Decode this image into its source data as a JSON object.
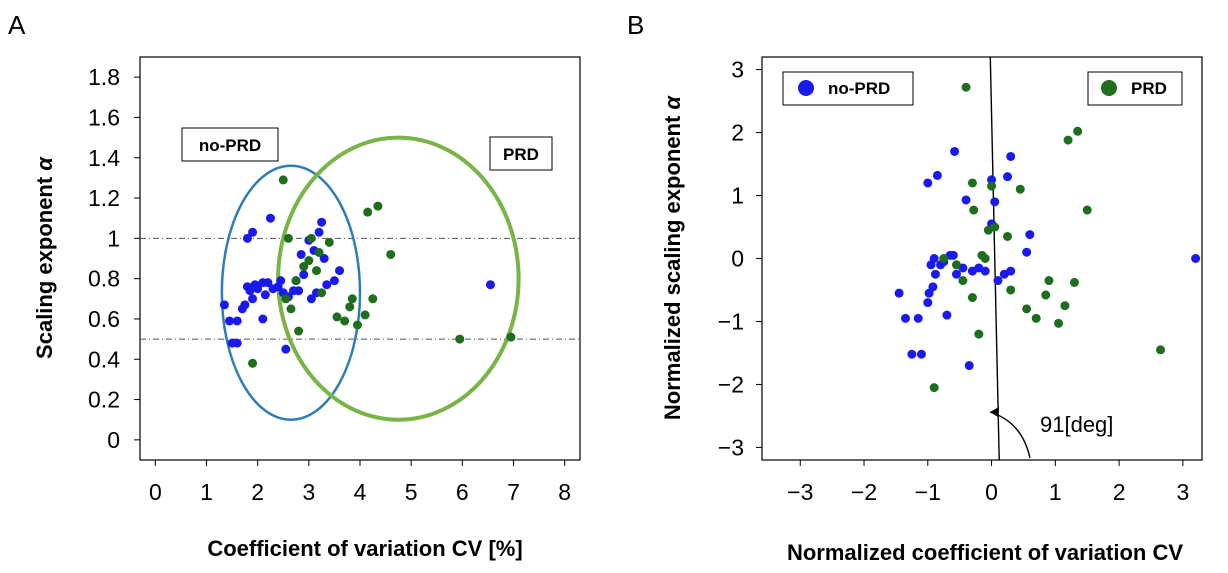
{
  "colors": {
    "no_prd": "#1a1aee",
    "prd": "#1e6e1e",
    "ellipse_no_prd": "#2e7db8",
    "ellipse_prd": "#78b446",
    "refline": "#555555"
  },
  "chart_data": [
    {
      "type": "scatter",
      "panel_label": "A",
      "xlabel": "Coefficient of variation CV [%]",
      "ylabel_main": "Scaling exponent ",
      "ylabel_symbol": "α",
      "xlim": [
        -0.3,
        8.3
      ],
      "ylim": [
        -0.1,
        1.9
      ],
      "xticks": [
        "0",
        "1",
        "2",
        "3",
        "4",
        "5",
        "6",
        "7",
        "8"
      ],
      "yticks": [
        "0",
        "0.2",
        "0.4",
        "0.6",
        "0.8",
        "1",
        "1.2",
        "1.4",
        "1.6",
        "1.8"
      ],
      "reference_lines_y": [
        1.0,
        0.5
      ],
      "ellipses": [
        {
          "label": "no-PRD",
          "cx": 2.65,
          "cy": 0.73,
          "rx": 1.35,
          "ry": 0.63
        },
        {
          "label": "PRD",
          "cx": 4.75,
          "cy": 0.8,
          "rx": 2.35,
          "ry": 0.7
        }
      ],
      "series": [
        {
          "name": "no-PRD",
          "points": [
            [
              1.35,
              0.67
            ],
            [
              1.45,
              0.59
            ],
            [
              1.5,
              0.48
            ],
            [
              1.6,
              0.48
            ],
            [
              1.6,
              0.59
            ],
            [
              1.7,
              0.65
            ],
            [
              1.75,
              0.67
            ],
            [
              1.8,
              1.0
            ],
            [
              1.8,
              0.76
            ],
            [
              1.85,
              0.74
            ],
            [
              1.9,
              1.03
            ],
            [
              1.9,
              0.7
            ],
            [
              1.95,
              0.77
            ],
            [
              2.0,
              0.75
            ],
            [
              2.1,
              0.6
            ],
            [
              2.1,
              0.78
            ],
            [
              2.15,
              0.72
            ],
            [
              2.2,
              0.78
            ],
            [
              2.25,
              1.1
            ],
            [
              2.3,
              0.75
            ],
            [
              2.4,
              0.76
            ],
            [
              2.45,
              0.79
            ],
            [
              2.5,
              0.73
            ],
            [
              2.55,
              0.45
            ],
            [
              2.6,
              0.71
            ],
            [
              2.7,
              0.74
            ],
            [
              2.75,
              0.79
            ],
            [
              2.8,
              0.74
            ],
            [
              2.85,
              0.92
            ],
            [
              2.9,
              0.82
            ],
            [
              3.0,
              0.99
            ],
            [
              3.05,
              0.7
            ],
            [
              3.1,
              0.94
            ],
            [
              3.15,
              0.73
            ],
            [
              3.2,
              1.03
            ],
            [
              3.25,
              1.08
            ],
            [
              3.3,
              0.9
            ],
            [
              3.35,
              0.77
            ],
            [
              3.5,
              0.79
            ],
            [
              3.6,
              0.84
            ],
            [
              6.55,
              0.77
            ]
          ]
        },
        {
          "name": "PRD",
          "points": [
            [
              1.9,
              0.38
            ],
            [
              2.5,
              1.29
            ],
            [
              2.55,
              0.7
            ],
            [
              2.6,
              1.0
            ],
            [
              2.65,
              0.65
            ],
            [
              2.75,
              0.79
            ],
            [
              2.8,
              0.54
            ],
            [
              2.9,
              0.86
            ],
            [
              3.0,
              0.89
            ],
            [
              3.05,
              1.0
            ],
            [
              3.15,
              0.84
            ],
            [
              3.2,
              0.93
            ],
            [
              3.25,
              0.73
            ],
            [
              3.4,
              0.98
            ],
            [
              3.55,
              0.61
            ],
            [
              3.7,
              0.59
            ],
            [
              3.8,
              0.66
            ],
            [
              3.85,
              0.7
            ],
            [
              3.95,
              0.57
            ],
            [
              4.1,
              0.62
            ],
            [
              4.15,
              1.13
            ],
            [
              4.25,
              0.7
            ],
            [
              4.35,
              1.16
            ],
            [
              4.6,
              0.92
            ],
            [
              5.95,
              0.5
            ],
            [
              6.95,
              0.51
            ]
          ]
        }
      ]
    },
    {
      "type": "scatter",
      "panel_label": "B",
      "xlabel": "Normalized coefficient of variation CV",
      "ylabel_main": "Normalized scaling exponent ",
      "ylabel_symbol": "α",
      "xlim": [
        -3.6,
        3.3
      ],
      "ylim": [
        -3.2,
        3.2
      ],
      "xticks": [
        "−3",
        "−2",
        "−1",
        "0",
        "1",
        "2",
        "3"
      ],
      "yticks": [
        "−3",
        "−2",
        "−1",
        "0",
        "1",
        "2",
        "3"
      ],
      "divider_angle_deg": 91,
      "angle_annotation": "91[deg]",
      "series": [
        {
          "name": "no-PRD",
          "points": [
            [
              -1.45,
              -0.55
            ],
            [
              -1.35,
              -0.95
            ],
            [
              -1.25,
              -1.52
            ],
            [
              -1.15,
              -0.95
            ],
            [
              -1.1,
              -1.52
            ],
            [
              -1.0,
              1.2
            ],
            [
              -1.0,
              -0.7
            ],
            [
              -0.98,
              -0.55
            ],
            [
              -0.95,
              -0.1
            ],
            [
              -0.92,
              -0.45
            ],
            [
              -0.9,
              0.0
            ],
            [
              -0.88,
              -0.25
            ],
            [
              -0.85,
              1.32
            ],
            [
              -0.8,
              -0.1
            ],
            [
              -0.75,
              -0.05
            ],
            [
              -0.7,
              -0.9
            ],
            [
              -0.65,
              0.05
            ],
            [
              -0.6,
              0.05
            ],
            [
              -0.58,
              1.7
            ],
            [
              -0.55,
              -0.25
            ],
            [
              -0.45,
              -0.15
            ],
            [
              -0.4,
              0.93
            ],
            [
              -0.35,
              -1.7
            ],
            [
              -0.3,
              -0.2
            ],
            [
              -0.2,
              -0.15
            ],
            [
              -0.1,
              -0.2
            ],
            [
              0.0,
              1.25
            ],
            [
              0.0,
              0.55
            ],
            [
              0.05,
              0.9
            ],
            [
              0.1,
              -0.35
            ],
            [
              0.2,
              -0.25
            ],
            [
              0.25,
              1.3
            ],
            [
              0.3,
              1.62
            ],
            [
              0.3,
              -0.2
            ],
            [
              0.55,
              0.1
            ],
            [
              0.6,
              0.38
            ],
            [
              3.2,
              0.0
            ]
          ]
        },
        {
          "name": "PRD",
          "points": [
            [
              -0.9,
              -2.05
            ],
            [
              -0.75,
              0.0
            ],
            [
              -0.55,
              -0.1
            ],
            [
              -0.45,
              -0.35
            ],
            [
              -0.4,
              2.72
            ],
            [
              -0.3,
              -0.62
            ],
            [
              -0.3,
              1.2
            ],
            [
              -0.28,
              0.77
            ],
            [
              -0.2,
              -1.2
            ],
            [
              -0.15,
              0.05
            ],
            [
              -0.1,
              0.0
            ],
            [
              -0.05,
              0.45
            ],
            [
              0.0,
              1.15
            ],
            [
              0.05,
              0.5
            ],
            [
              0.25,
              0.35
            ],
            [
              0.3,
              -0.5
            ],
            [
              0.45,
              1.1
            ],
            [
              0.55,
              -0.8
            ],
            [
              0.7,
              -0.95
            ],
            [
              0.85,
              -0.58
            ],
            [
              0.9,
              -0.35
            ],
            [
              1.05,
              -1.03
            ],
            [
              1.15,
              -0.75
            ],
            [
              1.2,
              1.88
            ],
            [
              1.3,
              -0.38
            ],
            [
              1.35,
              2.02
            ],
            [
              1.5,
              0.77
            ],
            [
              2.65,
              -1.45
            ]
          ]
        }
      ]
    }
  ]
}
